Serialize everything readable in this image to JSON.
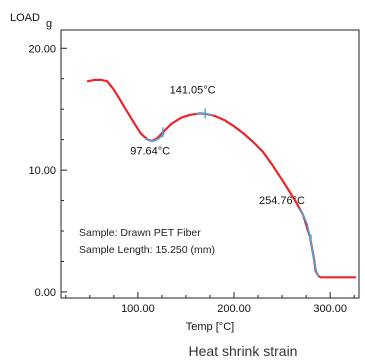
{
  "chart_data": {
    "type": "line",
    "title": "",
    "caption": "Heat shrink strain",
    "xlabel": "Temp [°C]",
    "ylabel": "LOAD",
    "yunit": "g",
    "xlim": [
      20,
      330
    ],
    "ylim": [
      -0.5,
      21.5
    ],
    "x_ticks": [
      {
        "value": 100,
        "label": "100.00"
      },
      {
        "value": 200,
        "label": "200.00"
      },
      {
        "value": 300,
        "label": "300.00"
      }
    ],
    "y_ticks": [
      {
        "value": 0,
        "label": "0.00"
      },
      {
        "value": 10,
        "label": "10.00"
      },
      {
        "value": 20,
        "label": "20.00"
      }
    ],
    "series": [
      {
        "color": "#e8262b",
        "x": [
          48,
          55,
          62,
          68,
          75,
          85,
          95,
          103,
          110,
          115,
          120,
          126,
          135,
          145,
          155,
          165,
          172,
          180,
          190,
          200,
          210,
          220,
          230,
          240,
          250,
          258,
          265,
          272,
          279,
          283,
          285,
          288,
          290,
          292,
          296,
          300,
          310,
          320,
          326
        ],
        "y": [
          17.3,
          17.4,
          17.4,
          17.3,
          16.6,
          15.3,
          14.0,
          13.0,
          12.5,
          12.4,
          12.6,
          13.1,
          13.8,
          14.3,
          14.55,
          14.65,
          14.6,
          14.45,
          14.1,
          13.6,
          13.0,
          12.3,
          11.5,
          10.4,
          9.2,
          8.2,
          7.3,
          6.3,
          4.5,
          2.8,
          1.7,
          1.3,
          1.2,
          1.2,
          1.2,
          1.2,
          1.2,
          1.2,
          1.2
        ]
      }
    ],
    "highlights": [
      {
        "color": "#4aa3d8",
        "x": [
          108,
          112,
          116,
          120,
          124,
          127
        ],
        "y": [
          12.55,
          12.45,
          12.4,
          12.5,
          12.75,
          13.0
        ]
      },
      {
        "color": "#4aa3d8",
        "x": [
          161,
          165,
          169,
          173,
          177
        ],
        "y": [
          14.62,
          14.65,
          14.65,
          14.6,
          14.52
        ]
      },
      {
        "color": "#4aa3d8",
        "x": [
          268,
          272,
          276,
          279,
          282,
          284,
          286,
          288
        ],
        "y": [
          6.8,
          6.3,
          5.6,
          4.5,
          3.2,
          2.2,
          1.6,
          1.3
        ]
      }
    ],
    "markers": [
      {
        "x": 126,
        "y": 13.1
      },
      {
        "x": 170,
        "y": 14.65
      },
      {
        "x": 280,
        "y": 4.3
      }
    ],
    "annotations": [
      {
        "text": "97.64°C",
        "x": 92,
        "y": 11.3
      },
      {
        "text": "141.05°C",
        "x": 133,
        "y": 16.3
      },
      {
        "text": "254.76°C",
        "x": 226,
        "y": 7.2
      }
    ],
    "sample_info": [
      "Sample: Drawn PET Fiber",
      "Sample Length: 15.250 (mm)"
    ],
    "grid": false,
    "legend": "none"
  }
}
